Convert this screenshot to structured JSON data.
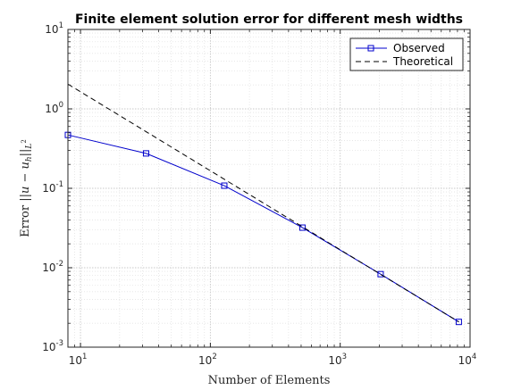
{
  "chart_data": {
    "type": "line",
    "title": "Finite element solution error for different mesh widths",
    "xlabel": "Number of Elements",
    "ylabel_parts": {
      "prefix": "Error ",
      "norm": "||u − u",
      "sub": "h",
      "close": "||",
      "norm_sub": "L",
      "norm_sup": "2"
    },
    "x_scale": "log",
    "y_scale": "log",
    "xlim": [
      8,
      10000
    ],
    "ylim": [
      0.001,
      10
    ],
    "x_ticks": [
      {
        "value": 10,
        "base": "10",
        "exp": "1"
      },
      {
        "value": 100,
        "base": "10",
        "exp": "2"
      },
      {
        "value": 1000,
        "base": "10",
        "exp": "3"
      },
      {
        "value": 10000,
        "base": "10",
        "exp": "4"
      }
    ],
    "y_ticks": [
      {
        "value": 0.001,
        "base": "10",
        "exp": "-3"
      },
      {
        "value": 0.01,
        "base": "10",
        "exp": "-2"
      },
      {
        "value": 0.1,
        "base": "10",
        "exp": "-1"
      },
      {
        "value": 1,
        "base": "10",
        "exp": "0"
      },
      {
        "value": 10,
        "base": "10",
        "exp": "1"
      }
    ],
    "grid": true,
    "minor_grid": true,
    "legend_position": "top-right",
    "series": [
      {
        "name": "Observed",
        "color": "#0000cc",
        "style": "solid",
        "marker": "square",
        "x": [
          8,
          32,
          128,
          512,
          2048,
          8192
        ],
        "y": [
          0.47,
          0.275,
          0.108,
          0.032,
          0.0083,
          0.00208
        ]
      },
      {
        "name": "Theoretical",
        "color": "#000000",
        "style": "dashed",
        "marker": "none",
        "x": [
          8,
          8192
        ],
        "y": [
          2.05,
          0.00208
        ]
      }
    ]
  }
}
